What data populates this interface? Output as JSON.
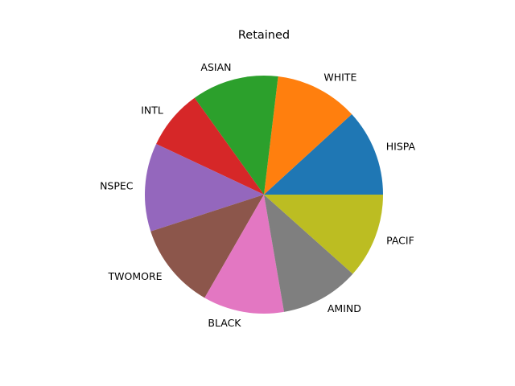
{
  "chart_data": {
    "type": "pie",
    "title": "Retained",
    "start_angle_deg": 0,
    "direction": "counterclockwise",
    "slices": [
      {
        "label": "HISPA",
        "value": 11.8,
        "color": "#1f77b4"
      },
      {
        "label": "WHITE",
        "value": 11.3,
        "color": "#ff7f0e"
      },
      {
        "label": "ASIAN",
        "value": 11.8,
        "color": "#2ca02c"
      },
      {
        "label": "INTL",
        "value": 8.1,
        "color": "#d62728"
      },
      {
        "label": "NSPEC",
        "value": 12.0,
        "color": "#9467bd"
      },
      {
        "label": "TWOMORE",
        "value": 11.7,
        "color": "#8c564b"
      },
      {
        "label": "BLACK",
        "value": 11.0,
        "color": "#e377c2"
      },
      {
        "label": "AMIND",
        "value": 10.7,
        "color": "#7f7f7f"
      },
      {
        "label": "PACIF",
        "value": 11.6,
        "color": "#bcbd22"
      }
    ]
  }
}
